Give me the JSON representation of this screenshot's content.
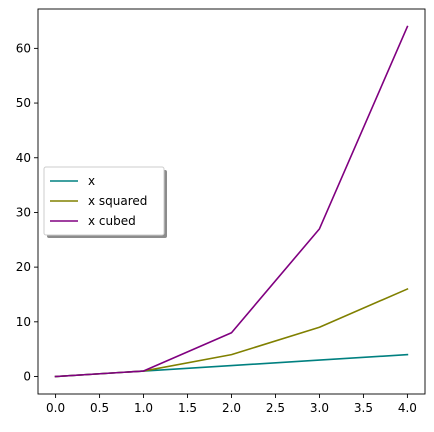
{
  "chart_data": {
    "type": "line",
    "title": "",
    "xlabel": "",
    "ylabel": "",
    "xlim": [
      -0.2,
      4.2
    ],
    "ylim": [
      -3.2,
      67.2
    ],
    "grid": false,
    "legend_placement": "center-left",
    "legend_shadow": true,
    "x": [
      0,
      1,
      2,
      3,
      4
    ],
    "series": [
      {
        "name": "x",
        "color": "#008080",
        "values": [
          0,
          1,
          2,
          3,
          4
        ]
      },
      {
        "name": "x squared",
        "color": "#808000",
        "values": [
          0,
          1,
          4,
          9,
          16
        ]
      },
      {
        "name": "x cubed",
        "color": "#800080",
        "values": [
          0,
          1,
          8,
          27,
          64
        ]
      }
    ],
    "x_ticks": [
      0.0,
      0.5,
      1.0,
      1.5,
      2.0,
      2.5,
      3.0,
      3.5,
      4.0
    ],
    "x_tick_labels": [
      "0.0",
      "0.5",
      "1.0",
      "1.5",
      "2.0",
      "2.5",
      "3.0",
      "3.5",
      "4.0"
    ],
    "y_ticks": [
      0,
      10,
      20,
      30,
      40,
      50,
      60
    ],
    "y_tick_labels": [
      "0",
      "10",
      "20",
      "30",
      "40",
      "50",
      "60"
    ]
  }
}
